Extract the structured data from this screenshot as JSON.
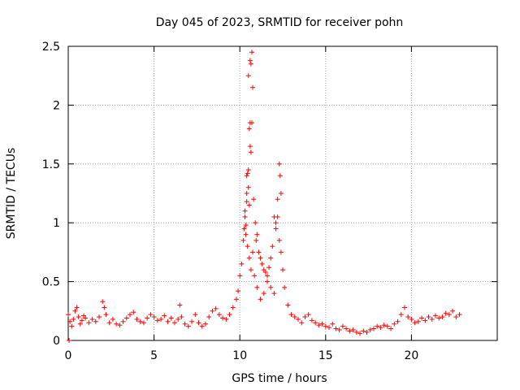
{
  "chart_data": {
    "type": "scatter",
    "title": "Day 045 of 2023, SRMTID for receiver pohn",
    "xlabel": "GPS time / hours",
    "ylabel": "SRMTID / TECUs",
    "xlim": [
      0,
      25
    ],
    "ylim": [
      0,
      2.5
    ],
    "xticks": [
      0,
      5,
      10,
      15,
      20
    ],
    "xtick_labels": [
      "0",
      "5",
      "10",
      "15",
      "20"
    ],
    "yticks": [
      0,
      0.5,
      1,
      1.5,
      2,
      2.5
    ],
    "ytick_labels": [
      "0",
      "0.5",
      "1",
      "1.5",
      "2",
      "2.5"
    ],
    "grid": true,
    "marker": "+",
    "series": [
      {
        "name": "SRMTID",
        "color": "#ff0000",
        "x": [
          0.0,
          0.1,
          0.2,
          0.3,
          0.4,
          0.5,
          0.6,
          0.7,
          0.8,
          0.9,
          1.0,
          1.2,
          1.4,
          1.6,
          1.8,
          2.0,
          2.1,
          2.2,
          2.4,
          2.6,
          2.8,
          3.0,
          3.2,
          3.4,
          3.6,
          3.8,
          4.0,
          4.2,
          4.4,
          4.6,
          4.8,
          5.0,
          5.2,
          5.4,
          5.6,
          5.8,
          6.0,
          6.2,
          6.4,
          6.5,
          6.6,
          6.8,
          7.0,
          7.2,
          7.4,
          7.6,
          7.8,
          8.0,
          8.2,
          8.4,
          8.6,
          8.8,
          9.0,
          9.2,
          9.4,
          9.6,
          9.8,
          9.9,
          10.0,
          10.1,
          10.2,
          10.25,
          10.3,
          10.35,
          10.4,
          10.45,
          10.5,
          10.55,
          10.6,
          10.65,
          10.7,
          10.75,
          10.8,
          10.85,
          10.9,
          10.95,
          11.0,
          11.1,
          11.2,
          11.3,
          11.4,
          11.5,
          11.6,
          11.7,
          11.8,
          11.9,
          12.0,
          12.1,
          12.2,
          12.3,
          12.4,
          12.5,
          12.6,
          12.8,
          13.0,
          13.2,
          13.4,
          13.6,
          13.8,
          14.0,
          14.2,
          14.4,
          14.6,
          14.8,
          15.0,
          15.2,
          15.4,
          15.6,
          15.8,
          16.0,
          16.2,
          16.4,
          16.6,
          16.8,
          17.0,
          17.2,
          17.4,
          17.6,
          17.8,
          18.0,
          18.2,
          18.4,
          18.6,
          18.8,
          19.0,
          19.2,
          19.4,
          19.6,
          19.8,
          20.0,
          20.2,
          20.4,
          20.6,
          20.8,
          21.0,
          21.2,
          21.4,
          21.6,
          21.8,
          22.0,
          22.2,
          22.4,
          22.6,
          22.8,
          10.6,
          10.65,
          10.7,
          10.75,
          10.5,
          10.55,
          10.6,
          10.65,
          10.4,
          10.45,
          10.5,
          10.55,
          10.3,
          10.35,
          10.4,
          12.3,
          12.35,
          12.4,
          12.1,
          12.2,
          11.0,
          11.2,
          11.4,
          11.6,
          11.8,
          12.0,
          0.05
        ],
        "y": [
          0.22,
          0.16,
          0.12,
          0.18,
          0.25,
          0.28,
          0.2,
          0.14,
          0.17,
          0.21,
          0.19,
          0.15,
          0.18,
          0.16,
          0.2,
          0.33,
          0.28,
          0.22,
          0.15,
          0.18,
          0.14,
          0.13,
          0.16,
          0.19,
          0.22,
          0.24,
          0.18,
          0.16,
          0.15,
          0.19,
          0.22,
          0.2,
          0.17,
          0.18,
          0.21,
          0.16,
          0.19,
          0.15,
          0.18,
          0.3,
          0.2,
          0.14,
          0.12,
          0.16,
          0.22,
          0.15,
          0.12,
          0.14,
          0.2,
          0.25,
          0.27,
          0.22,
          0.19,
          0.18,
          0.22,
          0.28,
          0.35,
          0.42,
          0.55,
          0.65,
          0.85,
          0.95,
          1.1,
          0.9,
          1.25,
          0.8,
          1.45,
          0.7,
          1.65,
          0.6,
          1.85,
          0.75,
          1.2,
          0.55,
          1.0,
          0.85,
          0.9,
          0.75,
          0.7,
          0.65,
          0.6,
          0.58,
          0.55,
          0.62,
          0.7,
          0.8,
          1.05,
          0.95,
          1.2,
          0.85,
          0.75,
          0.6,
          0.45,
          0.3,
          0.22,
          0.2,
          0.18,
          0.15,
          0.2,
          0.22,
          0.17,
          0.15,
          0.13,
          0.14,
          0.12,
          0.11,
          0.14,
          0.1,
          0.09,
          0.12,
          0.1,
          0.08,
          0.09,
          0.07,
          0.06,
          0.08,
          0.07,
          0.09,
          0.1,
          0.12,
          0.11,
          0.13,
          0.12,
          0.1,
          0.14,
          0.16,
          0.22,
          0.28,
          0.2,
          0.18,
          0.15,
          0.16,
          0.19,
          0.17,
          0.2,
          0.18,
          0.21,
          0.19,
          0.2,
          0.23,
          0.22,
          0.25,
          0.2,
          0.22,
          2.38,
          2.35,
          2.45,
          2.15,
          2.25,
          1.8,
          1.85,
          1.6,
          1.4,
          1.42,
          1.3,
          1.15,
          1.05,
          0.98,
          1.18,
          1.5,
          1.4,
          1.25,
          1.0,
          1.05,
          0.45,
          0.35,
          0.4,
          0.5,
          0.45,
          0.4,
          0.0
        ]
      }
    ]
  }
}
